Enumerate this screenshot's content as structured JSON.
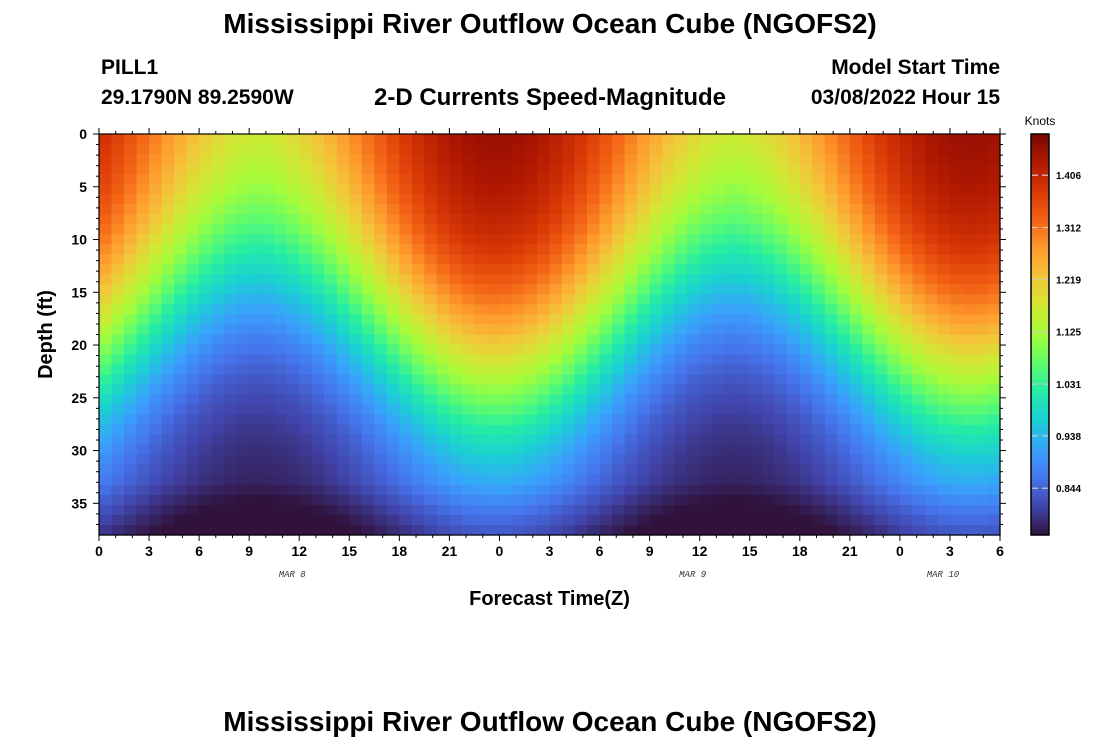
{
  "header": {
    "title": "Mississippi River Outflow Ocean Cube (NGOFS2)",
    "station_id": "PILL1",
    "station_coords": "29.1790N  89.2590W",
    "product": "2-D Currents Speed-Magnitude",
    "model_start_label": "Model Start Time",
    "model_start_value": "03/08/2022 Hour 15"
  },
  "footer": {
    "title": "Mississippi River Outflow Ocean Cube (NGOFS2)"
  },
  "chart_data": {
    "type": "heatmap",
    "xlabel": "Forecast Time(Z)",
    "ylabel": "Depth (ft)",
    "x_range_hours": [
      0,
      54
    ],
    "y_range_ft": [
      0,
      38
    ],
    "y_inverted": true,
    "x_ticks": [
      "0",
      "3",
      "6",
      "9",
      "12",
      "15",
      "18",
      "21",
      "0",
      "3",
      "6",
      "9",
      "12",
      "15",
      "18",
      "21",
      "0",
      "3",
      "6"
    ],
    "y_ticks": [
      "0",
      "5",
      "10",
      "15",
      "20",
      "25",
      "30",
      "35"
    ],
    "y_tick_values": [
      0,
      5,
      10,
      15,
      20,
      25,
      30,
      35
    ],
    "date_labels": [
      {
        "text": "MAR 8",
        "hour": 12
      },
      {
        "text": "MAR 9",
        "hour": 36
      },
      {
        "text": "MAR 10",
        "hour": 51
      }
    ],
    "colorbar": {
      "unit": "Knots",
      "min": 0.76,
      "max": 1.48,
      "ticks": [
        "1.406",
        "1.312",
        "1.219",
        "1.125",
        "1.031",
        "0.938",
        "0.844"
      ],
      "tick_values": [
        1.406,
        1.312,
        1.219,
        1.125,
        1.031,
        0.938,
        0.844
      ],
      "colors": [
        "#30123b",
        "#4145ab",
        "#4675ed",
        "#39a2fc",
        "#1bcfd4",
        "#24eca6",
        "#61fc6c",
        "#a4fc3b",
        "#d1e834",
        "#f3c63a",
        "#fe9b2d",
        "#f36315",
        "#d93806",
        "#b11901",
        "#7a0403"
      ]
    },
    "field": {
      "x_cells": 72,
      "y_cells": 40,
      "surface_max": 1.47,
      "bottom_min": 0.76,
      "trough_hours": [
        9.5,
        38
      ],
      "trough_surface_value": 1.23,
      "peak_hours": [
        22,
        48
      ],
      "boundary_depth_at_trough_ft": 12,
      "boundary_depth_at_peak_ft": 23
    }
  }
}
